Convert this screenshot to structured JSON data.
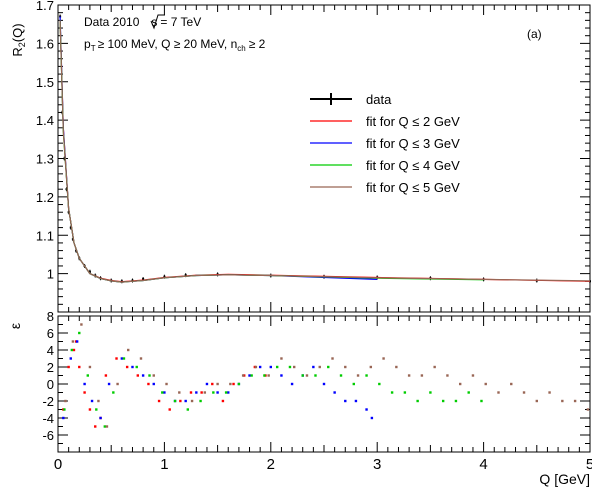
{
  "chart_data": [
    {
      "panel": "top",
      "type": "line",
      "title": "",
      "ylabel": "R",
      "ylabel_sub": "2",
      "ylabel_tail": "(Q)",
      "xlim": [
        0,
        5
      ],
      "ylim": [
        0.9,
        1.7
      ],
      "yticks": [
        0.9,
        1,
        1.1,
        1.2,
        1.3,
        1.4,
        1.5,
        1.6,
        1.7
      ],
      "ytick_labels": [
        "",
        "1",
        "1.1",
        "1.2",
        "1.3",
        "1.4",
        "1.5",
        "1.6",
        "1.7"
      ],
      "annotations": {
        "line1_a": "Data 2010",
        "line1_b": "s",
        "line1_c": "= 7 TeV",
        "line2_a": "p",
        "line2_a_sub": "T",
        "line2_b": "≥ 100 MeV, Q ≥ 20 MeV, n",
        "line2_b_sub": "ch",
        "line2_c": "≥ 2",
        "panel_tag": "(a)"
      },
      "legend": {
        "placement": "top-right",
        "entries": [
          "data",
          "fit for Q ≤ 2 GeV",
          "fit for Q ≤ 3 GeV",
          "fit for Q ≤ 4 GeV",
          "fit for Q ≤ 5 GeV"
        ]
      },
      "series": [
        {
          "name": "data",
          "x": [
            0.02,
            0.04,
            0.06,
            0.08,
            0.1,
            0.12,
            0.14,
            0.17,
            0.2,
            0.25,
            0.3,
            0.35,
            0.4,
            0.5,
            0.6,
            0.7,
            0.8,
            1.0,
            1.2,
            1.5,
            2.0,
            2.5,
            3.0,
            3.5,
            4.0,
            4.5,
            5.0
          ],
          "y": [
            1.67,
            1.42,
            1.3,
            1.22,
            1.16,
            1.12,
            1.09,
            1.06,
            1.04,
            1.02,
            1.005,
            0.995,
            0.988,
            0.982,
            0.98,
            0.982,
            0.986,
            0.992,
            0.996,
            0.998,
            0.995,
            0.992,
            0.99,
            0.988,
            0.985,
            0.982,
            0.98
          ]
        },
        {
          "name": "fit for Q ≤ 2 GeV",
          "x": [
            0.02,
            0.05,
            0.1,
            0.15,
            0.2,
            0.3,
            0.4,
            0.5,
            0.6,
            0.8,
            1.0,
            1.3,
            1.6,
            2.0,
            3.0,
            4.0,
            5.0
          ],
          "y": [
            1.66,
            1.38,
            1.17,
            1.08,
            1.04,
            1.0,
            0.988,
            0.982,
            0.979,
            0.983,
            0.99,
            0.996,
            0.998,
            0.996,
            0.99,
            0.985,
            0.98
          ]
        },
        {
          "name": "fit for Q ≤ 3 GeV",
          "x": [
            0.02,
            0.05,
            0.1,
            0.15,
            0.2,
            0.3,
            0.4,
            0.5,
            0.6,
            0.8,
            1.0,
            1.3,
            1.6,
            2.0,
            3.0
          ],
          "y": [
            1.67,
            1.38,
            1.17,
            1.08,
            1.04,
            1.0,
            0.987,
            0.981,
            0.978,
            0.982,
            0.989,
            0.995,
            0.997,
            0.995,
            0.985
          ]
        },
        {
          "name": "fit for Q ≤ 4 GeV",
          "x": [
            0.02,
            0.05,
            0.1,
            0.15,
            0.2,
            0.3,
            0.4,
            0.5,
            0.6,
            0.8,
            1.0,
            1.3,
            1.6,
            2.0,
            3.0,
            4.0
          ],
          "y": [
            1.66,
            1.37,
            1.17,
            1.08,
            1.04,
            1.0,
            0.987,
            0.981,
            0.978,
            0.982,
            0.989,
            0.995,
            0.997,
            0.995,
            0.988,
            0.984
          ]
        },
        {
          "name": "fit for Q ≤ 5 GeV",
          "x": [
            0.02,
            0.05,
            0.1,
            0.15,
            0.2,
            0.3,
            0.4,
            0.5,
            0.6,
            0.8,
            1.0,
            1.3,
            1.6,
            2.0,
            3.0,
            4.0,
            5.0
          ],
          "y": [
            1.66,
            1.37,
            1.17,
            1.08,
            1.04,
            1.0,
            0.987,
            0.981,
            0.978,
            0.982,
            0.989,
            0.995,
            0.997,
            0.995,
            0.989,
            0.985,
            0.981
          ]
        }
      ],
      "colors": {
        "data": "#000000",
        "fit2": "#ff0000",
        "fit3": "#0000ff",
        "fit4": "#00cc00",
        "fit5": "#996655"
      }
    },
    {
      "panel": "bottom",
      "type": "scatter",
      "ylabel": "ε",
      "xlabel": "Q [GeV]",
      "xlim": [
        0,
        5
      ],
      "ylim": [
        -8,
        8
      ],
      "yticks": [
        -6,
        -4,
        -2,
        0,
        2,
        4,
        6,
        8
      ],
      "xticks": [
        0,
        1,
        2,
        3,
        4,
        5
      ],
      "series": [
        {
          "name": "fit for Q ≤ 2 GeV",
          "x": [
            0.05,
            0.1,
            0.15,
            0.17,
            0.2,
            0.25,
            0.3,
            0.35,
            0.4,
            0.45,
            0.55,
            0.65,
            0.75,
            0.85,
            0.95,
            1.05,
            1.15,
            1.25,
            1.35,
            1.45,
            1.55,
            1.65,
            1.75,
            1.85,
            1.95
          ],
          "y": [
            -3,
            2,
            4,
            5,
            2,
            -1,
            -3,
            -5,
            -4,
            1,
            3,
            2,
            1,
            0,
            -2,
            -3,
            -2,
            -1,
            -1,
            0,
            -2,
            0,
            1,
            2,
            1
          ]
        },
        {
          "name": "fit for Q ≤ 3 GeV",
          "x": [
            0.05,
            0.12,
            0.18,
            0.25,
            0.32,
            0.4,
            0.48,
            0.6,
            0.7,
            0.8,
            0.9,
            1.0,
            1.1,
            1.2,
            1.3,
            1.4,
            1.5,
            1.6,
            1.7,
            1.8,
            1.9,
            2.0,
            2.1,
            2.2,
            2.3,
            2.4,
            2.5,
            2.6,
            2.7,
            2.8,
            2.9,
            2.95
          ],
          "y": [
            -4,
            3,
            5,
            0,
            -2,
            -4,
            0,
            3,
            2,
            1,
            0,
            -1,
            -2,
            -2,
            -1,
            0,
            -1,
            -1,
            0,
            1,
            2,
            2,
            1,
            0,
            1,
            2,
            0,
            -1,
            -2,
            -2,
            -3,
            -4
          ]
        },
        {
          "name": "fit for Q ≤ 4 GeV",
          "x": [
            0.06,
            0.13,
            0.2,
            0.28,
            0.36,
            0.44,
            0.52,
            0.62,
            0.74,
            0.86,
            0.98,
            1.1,
            1.22,
            1.34,
            1.46,
            1.58,
            1.7,
            1.82,
            1.94,
            2.06,
            2.18,
            2.3,
            2.42,
            2.54,
            2.66,
            2.78,
            2.9,
            3.02,
            3.14,
            3.26,
            3.38,
            3.5,
            3.62,
            3.74,
            3.86,
            3.98
          ],
          "y": [
            -3,
            4,
            6,
            1,
            -3,
            -5,
            -1,
            3,
            2,
            1,
            -1,
            -2,
            -3,
            -2,
            -1,
            -1,
            0,
            1,
            1,
            2,
            2,
            1,
            1,
            2,
            1,
            0,
            1,
            0,
            -1,
            -1,
            -2,
            -1,
            -2,
            -2,
            -1,
            -2
          ]
        },
        {
          "name": "fit for Q ≤ 5 GeV",
          "x": [
            0.07,
            0.14,
            0.22,
            0.3,
            0.38,
            0.46,
            0.56,
            0.66,
            0.78,
            0.9,
            1.02,
            1.14,
            1.26,
            1.38,
            1.5,
            1.62,
            1.74,
            1.86,
            1.98,
            2.1,
            2.22,
            2.34,
            2.46,
            2.58,
            2.7,
            2.82,
            2.94,
            3.06,
            3.18,
            3.3,
            3.42,
            3.54,
            3.66,
            3.78,
            3.9,
            4.02,
            4.14,
            4.26,
            4.38,
            4.5,
            4.62,
            4.74,
            4.86,
            4.98
          ],
          "y": [
            -2,
            5,
            7,
            2,
            -2,
            -5,
            0,
            4,
            3,
            1,
            0,
            -1,
            -2,
            -1,
            0,
            0,
            1,
            2,
            1,
            3,
            2,
            1,
            2,
            3,
            2,
            1,
            2,
            3,
            2,
            1,
            1,
            2,
            1,
            0,
            1,
            0,
            -1,
            0,
            -1,
            -2,
            -1,
            -2,
            -2,
            -3
          ]
        }
      ]
    }
  ]
}
